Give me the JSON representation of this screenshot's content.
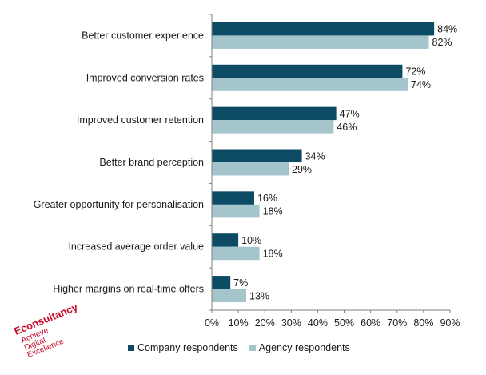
{
  "chart_data": {
    "type": "bar",
    "orientation": "horizontal",
    "categories": [
      "Better customer experience",
      "Improved conversion rates",
      "Improved customer retention",
      "Better brand perception",
      "Greater opportunity for personalisation",
      "Increased average order value",
      "Higher margins on real-time offers"
    ],
    "series": [
      {
        "name": "Company respondents",
        "color": "#0d4a63",
        "values": [
          84,
          72,
          47,
          34,
          16,
          10,
          7
        ]
      },
      {
        "name": "Agency respondents",
        "color": "#a4c5cc",
        "values": [
          82,
          74,
          46,
          29,
          18,
          18,
          13
        ]
      }
    ],
    "data_label_suffix": "%",
    "xlim": [
      0,
      90
    ],
    "xticks": [
      "0%",
      "10%",
      "20%",
      "30%",
      "40%",
      "50%",
      "60%",
      "70%",
      "80%",
      "90%"
    ],
    "grid": false,
    "legend_position": "bottom"
  },
  "logo": {
    "line1": "Econsultancy",
    "line2": "Achieve",
    "line3": "Digital",
    "line4": "Excellence"
  }
}
